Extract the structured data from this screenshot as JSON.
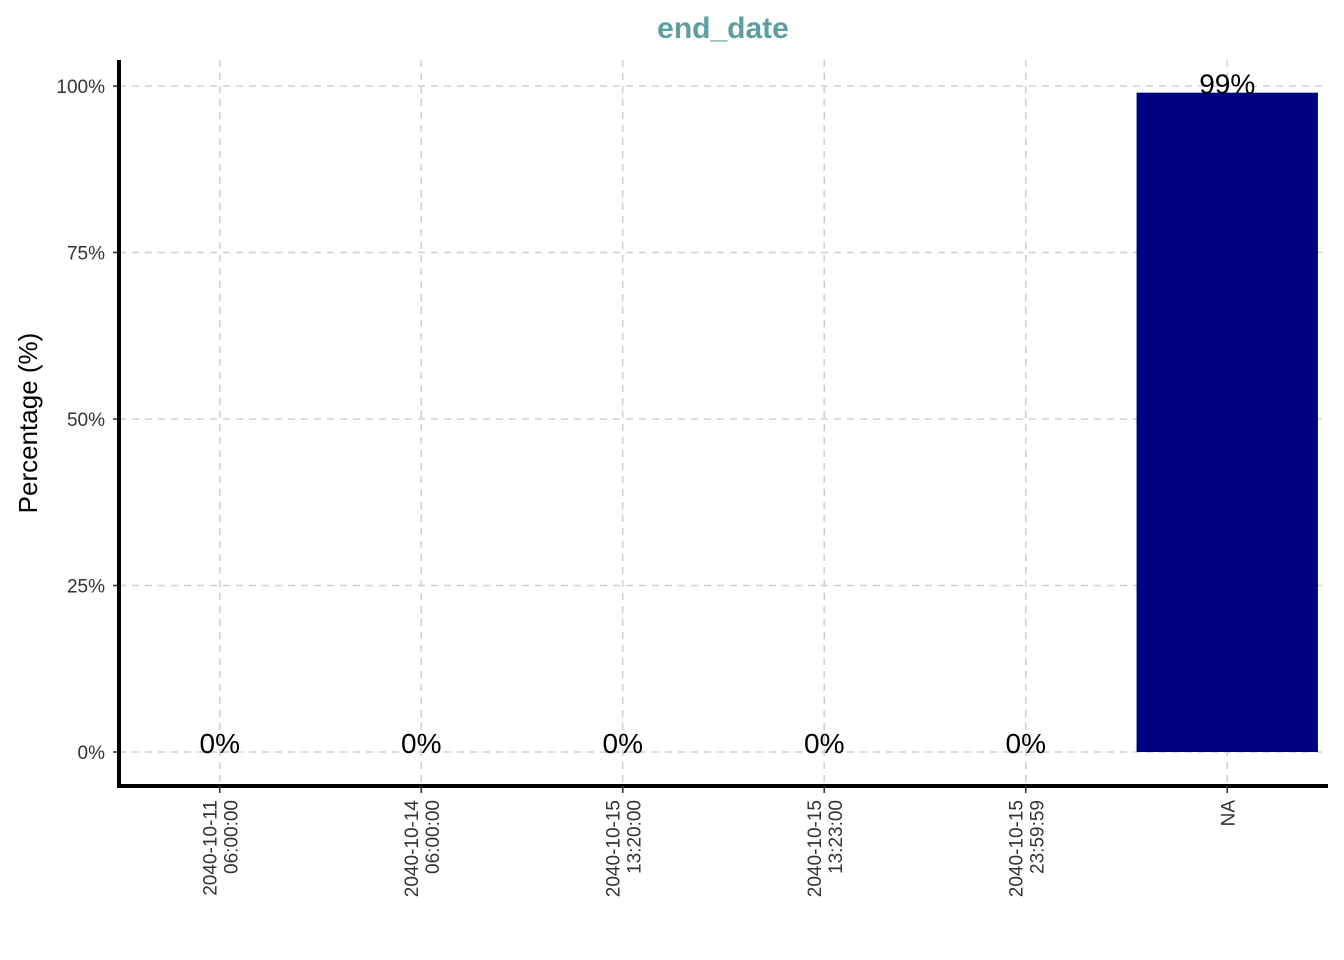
{
  "chart_data": {
    "type": "bar",
    "title": "end_date",
    "xlabel": "",
    "ylabel": "Percentage (%)",
    "categories": [
      "2040-10-11\n06:00:00",
      "2040-10-14\n06:00:00",
      "2040-10-15\n13:20:00",
      "2040-10-15\n13:23:00",
      "2040-10-15\n23:59:59",
      "NA"
    ],
    "values": [
      0,
      0,
      0,
      0,
      0,
      99
    ],
    "data_labels": [
      "0%",
      "0%",
      "0%",
      "0%",
      "0%",
      "99%"
    ],
    "ylim": [
      0,
      100
    ],
    "yticks": [
      0,
      25,
      50,
      75,
      100
    ],
    "ytick_labels": [
      "0%",
      "25%",
      "50%",
      "75%",
      "100%"
    ],
    "grid": true,
    "legend": "none",
    "bar_color": "#000080",
    "title_color": "#5f9ea0"
  }
}
